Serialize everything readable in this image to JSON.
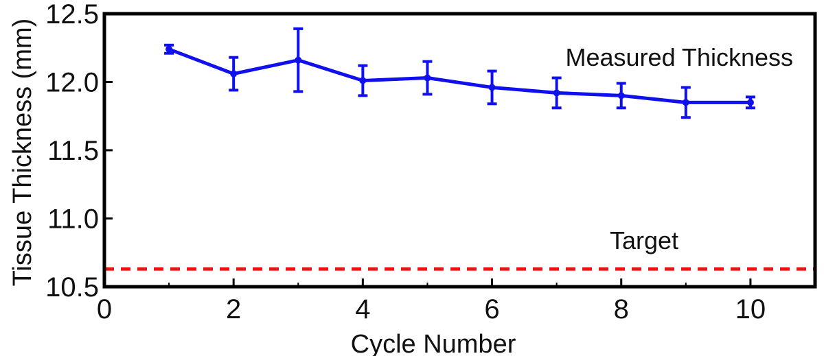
{
  "chart_data": {
    "type": "line",
    "xlabel": "Cycle Number",
    "ylabel": "Tissue Thickness (mm)",
    "xlim": [
      0,
      11
    ],
    "ylim": [
      10.5,
      12.5
    ],
    "x_ticks": [
      "0",
      "2",
      "4",
      "6",
      "8",
      "10"
    ],
    "x_tick_values": [
      0,
      2,
      4,
      6,
      8,
      10
    ],
    "y_ticks": [
      "12.5",
      "12.0",
      "11.5",
      "11.0",
      "10.5"
    ],
    "y_tick_values": [
      12.5,
      12.0,
      11.5,
      11.0,
      10.5
    ],
    "grid": false,
    "series": [
      {
        "name": "Measured Thickness",
        "color": "#1010ee",
        "x": [
          1,
          2,
          3,
          4,
          5,
          6,
          7,
          8,
          9,
          10
        ],
        "y": [
          12.24,
          12.06,
          12.16,
          12.01,
          12.03,
          11.96,
          11.92,
          11.9,
          11.85,
          11.85
        ],
        "error": [
          0.03,
          0.12,
          0.23,
          0.11,
          0.12,
          0.12,
          0.11,
          0.09,
          0.11,
          0.04
        ]
      }
    ],
    "reference_lines": [
      {
        "name": "Target",
        "y": 10.63,
        "color": "#ee1111",
        "style": "dashed"
      }
    ]
  }
}
